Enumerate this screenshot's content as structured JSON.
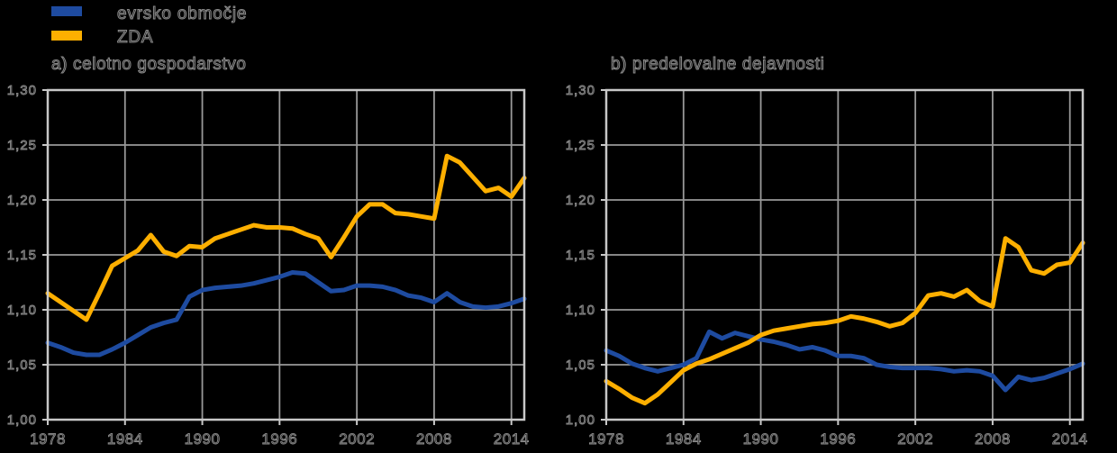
{
  "style": {
    "background": "#000000",
    "grid_color": "#999999",
    "axis_color": "#c8c8c8",
    "text_outline_color": "#8a8a8a",
    "series_blue": "#1e4ba0",
    "series_yellow": "#fdaf00"
  },
  "legend": {
    "items": [
      {
        "id": "evrsko-obmocje",
        "label": "evrsko območje",
        "color": "#1e4ba0"
      },
      {
        "id": "zda",
        "label": "ZDA",
        "color": "#fdaf00"
      }
    ]
  },
  "chart_data": [
    {
      "type": "line",
      "title": "a) celotno gospodarstvo",
      "xlim": [
        1978,
        2015
      ],
      "ylim": [
        1.0,
        1.3
      ],
      "grid": true,
      "x_tick_labels": [
        "1978",
        "1984",
        "1990",
        "1996",
        "2002",
        "2008",
        "2014"
      ],
      "y_tick_labels": [
        "1,00",
        "1,05",
        "1,10",
        "1,15",
        "1,20",
        "1,25",
        "1,30"
      ],
      "x": [
        1978,
        1979,
        1980,
        1981,
        1982,
        1983,
        1984,
        1985,
        1986,
        1987,
        1988,
        1989,
        1990,
        1991,
        1992,
        1993,
        1994,
        1995,
        1996,
        1997,
        1998,
        1999,
        2000,
        2001,
        2002,
        2003,
        2004,
        2005,
        2006,
        2007,
        2008,
        2009,
        2010,
        2011,
        2012,
        2013,
        2014,
        2015
      ],
      "series": [
        {
          "id": "evrsko-obmocje",
          "name": "evrsko območje",
          "color": "#1e4ba0",
          "values": [
            1.07,
            1.066,
            1.061,
            1.059,
            1.059,
            1.064,
            1.07,
            1.077,
            1.084,
            1.088,
            1.091,
            1.112,
            1.118,
            1.12,
            1.121,
            1.122,
            1.124,
            1.127,
            1.13,
            1.134,
            1.133,
            1.125,
            1.117,
            1.118,
            1.122,
            1.122,
            1.121,
            1.118,
            1.113,
            1.111,
            1.107,
            1.115,
            1.107,
            1.103,
            1.102,
            1.103,
            1.106,
            1.11
          ]
        },
        {
          "id": "zda",
          "name": "ZDA",
          "color": "#fdaf00",
          "values": [
            1.115,
            1.107,
            1.099,
            1.091,
            1.115,
            1.14,
            1.147,
            1.154,
            1.168,
            1.153,
            1.149,
            1.158,
            1.157,
            1.165,
            1.169,
            1.173,
            1.177,
            1.175,
            1.175,
            1.174,
            1.169,
            1.165,
            1.148,
            1.166,
            1.185,
            1.196,
            1.196,
            1.188,
            1.187,
            1.185,
            1.183,
            1.24,
            1.234,
            1.221,
            1.208,
            1.211,
            1.203,
            1.22
          ]
        }
      ]
    },
    {
      "type": "line",
      "title": "b) predelovalne dejavnosti",
      "xlim": [
        1978,
        2015
      ],
      "ylim": [
        1.0,
        1.3
      ],
      "grid": true,
      "x_tick_labels": [
        "1978",
        "1984",
        "1990",
        "1996",
        "2002",
        "2008",
        "2014"
      ],
      "y_tick_labels": [
        "1,00",
        "1,05",
        "1,10",
        "1,15",
        "1,20",
        "1,25",
        "1,30"
      ],
      "x": [
        1978,
        1979,
        1980,
        1981,
        1982,
        1983,
        1984,
        1985,
        1986,
        1987,
        1988,
        1989,
        1990,
        1991,
        1992,
        1993,
        1994,
        1995,
        1996,
        1997,
        1998,
        1999,
        2000,
        2001,
        2002,
        2003,
        2004,
        2005,
        2006,
        2007,
        2008,
        2009,
        2010,
        2011,
        2012,
        2013,
        2014,
        2015
      ],
      "series": [
        {
          "id": "evrsko-obmocje",
          "name": "evrsko območje",
          "color": "#1e4ba0",
          "values": [
            1.063,
            1.058,
            1.051,
            1.047,
            1.044,
            1.047,
            1.05,
            1.056,
            1.08,
            1.074,
            1.079,
            1.076,
            1.073,
            1.071,
            1.068,
            1.064,
            1.066,
            1.063,
            1.058,
            1.058,
            1.056,
            1.05,
            1.048,
            1.047,
            1.047,
            1.047,
            1.046,
            1.044,
            1.045,
            1.044,
            1.04,
            1.027,
            1.039,
            1.036,
            1.038,
            1.042,
            1.046,
            1.051
          ]
        },
        {
          "id": "zda",
          "name": "ZDA",
          "color": "#fdaf00",
          "values": [
            1.035,
            1.028,
            1.02,
            1.015,
            1.023,
            1.034,
            1.045,
            1.051,
            1.055,
            1.06,
            1.065,
            1.07,
            1.077,
            1.081,
            1.083,
            1.085,
            1.087,
            1.088,
            1.09,
            1.094,
            1.092,
            1.089,
            1.085,
            1.088,
            1.097,
            1.113,
            1.115,
            1.112,
            1.118,
            1.108,
            1.103,
            1.165,
            1.157,
            1.136,
            1.133,
            1.141,
            1.143,
            1.161
          ]
        }
      ]
    }
  ]
}
